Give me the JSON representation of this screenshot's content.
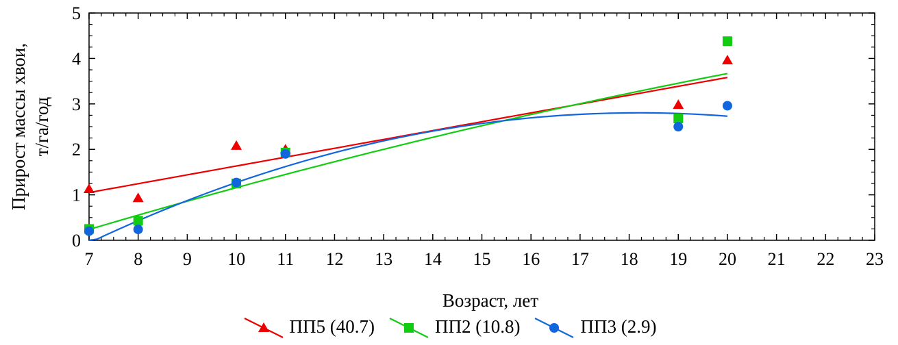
{
  "chart_data": {
    "type": "scatter",
    "xlabel": "Возраст, лет",
    "ylabel_lines": [
      "Прирост массы хвои,",
      "т/га/год"
    ],
    "xlim": [
      7,
      23
    ],
    "ylim": [
      0,
      5
    ],
    "x_ticks": [
      7,
      8,
      9,
      10,
      11,
      12,
      13,
      14,
      15,
      16,
      17,
      18,
      19,
      20,
      21,
      22,
      23
    ],
    "y_ticks": [
      0,
      1,
      2,
      3,
      4,
      5
    ],
    "grid": false,
    "legend_position": "bottom",
    "series": [
      {
        "name": "ПП5 (40.7)",
        "color": "#ee0000",
        "marker": "triangle",
        "x": [
          7,
          8,
          10,
          11,
          19,
          20
        ],
        "y": [
          1.13,
          0.93,
          2.08,
          2.0,
          2.98,
          3.96
        ],
        "fit": "linear",
        "fit_coeffs": [
          -0.314,
          0.1948
        ]
      },
      {
        "name": "ПП2 (10.8)",
        "color": "#11cc11",
        "marker": "square",
        "x": [
          7,
          8,
          10,
          11,
          19,
          20
        ],
        "y": [
          0.25,
          0.43,
          1.25,
          1.93,
          2.68,
          4.38
        ],
        "fit": "quadratic",
        "fit_coeffs": [
          -2.212,
          0.38,
          -0.0043
        ]
      },
      {
        "name": "ПП3 (2.9)",
        "color": "#1166dd",
        "marker": "circle",
        "x": [
          7,
          8,
          10,
          11,
          19,
          20
        ],
        "y": [
          0.2,
          0.24,
          1.27,
          1.9,
          2.5,
          2.96
        ],
        "fit": "quadratic",
        "fit_coeffs": [
          -4.75,
          0.83,
          -0.0228
        ]
      }
    ]
  }
}
